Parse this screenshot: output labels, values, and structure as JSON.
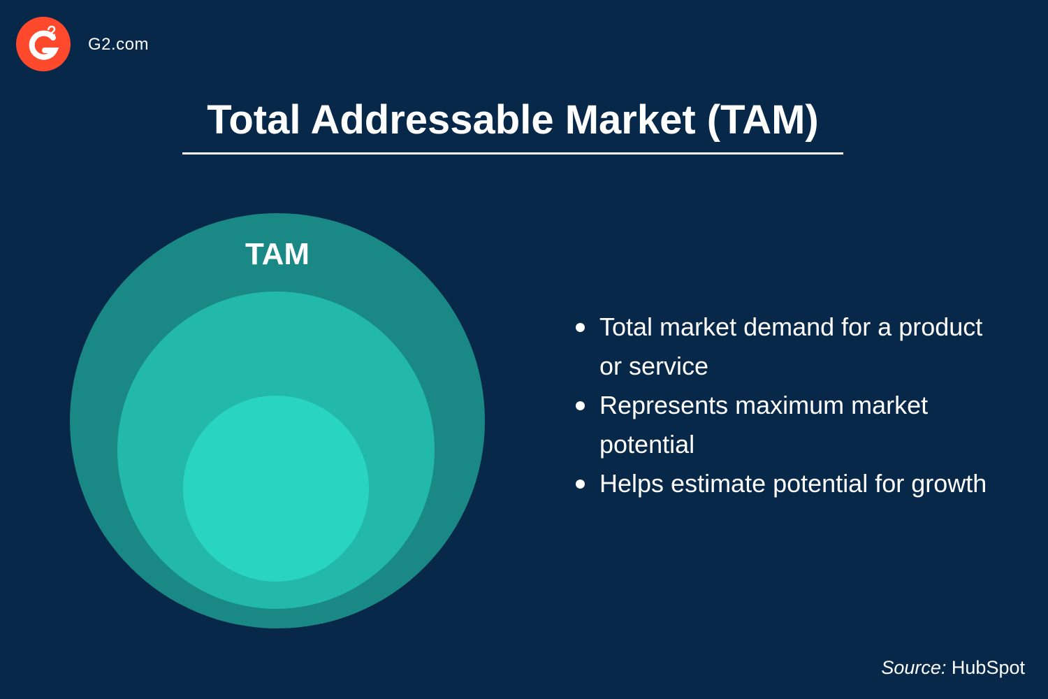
{
  "brand": "G2.com",
  "title": "Total Addressable Market (TAM)",
  "diagram": {
    "label": "TAM"
  },
  "bullets": [
    "Total market demand for a product or service",
    "Represents maximum market potential",
    "Helps estimate potential for growth"
  ],
  "source": {
    "label": "Source:",
    "name": "HubSpot"
  }
}
